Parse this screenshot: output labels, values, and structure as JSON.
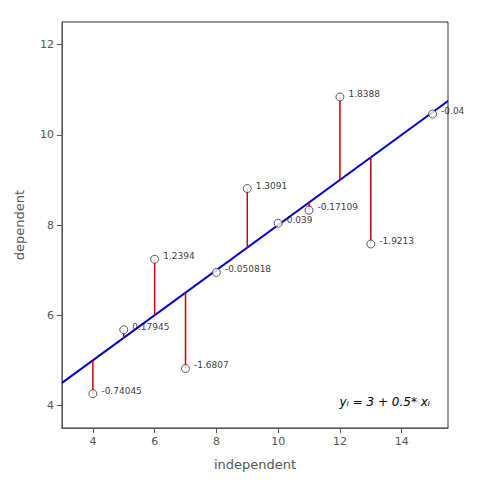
{
  "chart_data": {
    "type": "scatter",
    "xlabel": "independent",
    "ylabel": "dependent",
    "annotation": "yᵢ = 3 + 0.5* xᵢ",
    "xlim": [
      3.0,
      15.5
    ],
    "ylim": [
      3.5,
      12.5
    ],
    "xticks": [
      4,
      6,
      8,
      10,
      12,
      14
    ],
    "yticks": [
      4,
      6,
      8,
      10,
      12
    ],
    "grid": false,
    "series": [
      {
        "type": "line",
        "color": "#0000CC",
        "x": [
          3.0,
          15.5
        ],
        "values": [
          4.5,
          10.75
        ]
      },
      {
        "type": "residual",
        "color": "#CC0000",
        "x": [
          4,
          5,
          6,
          7,
          8,
          9,
          10,
          11,
          12,
          13,
          15
        ],
        "fitted": [
          5,
          5.5,
          6,
          6.5,
          7,
          7.5,
          8,
          8.5,
          9,
          9.5,
          10.5
        ],
        "values": [
          4.25955,
          5.67945,
          7.2394,
          4.8193,
          6.949182,
          8.8091,
          8.039,
          8.32891,
          10.8388,
          7.5787,
          10.46
        ]
      },
      {
        "type": "scatter",
        "color": "#333333",
        "marker": "circle",
        "x": [
          4,
          5,
          6,
          7,
          8,
          9,
          10,
          11,
          12,
          13,
          15
        ],
        "values": [
          4.25955,
          5.67945,
          7.2394,
          4.8193,
          6.949182,
          8.8091,
          8.039,
          8.32891,
          10.8388,
          7.5787,
          10.46
        ],
        "residuals": [
          -0.74045,
          0.17945,
          1.2394,
          -1.6807,
          -0.050818,
          1.3091,
          0.039,
          -0.17109,
          1.8388,
          -1.9213,
          -0.04
        ]
      }
    ]
  }
}
